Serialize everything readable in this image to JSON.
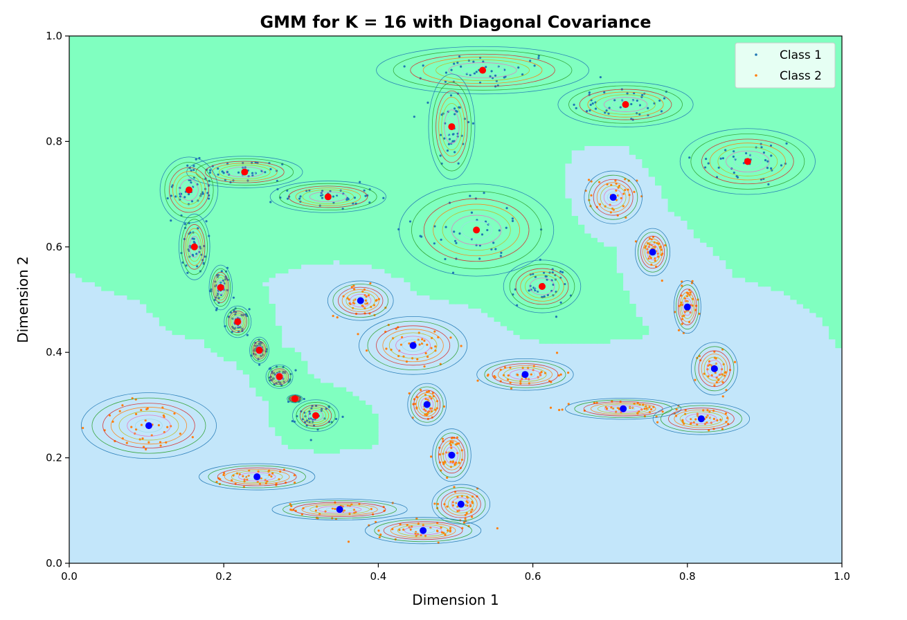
{
  "chart_data": {
    "type": "scatter",
    "title": "GMM for K = 16 with Diagonal Covariance",
    "xlabel": "Dimension 1",
    "ylabel": "Dimension 2",
    "xlim": [
      0.0,
      1.0
    ],
    "ylim": [
      0.0,
      1.0
    ],
    "x_ticks": [
      "0.0",
      "0.2",
      "0.4",
      "0.6",
      "0.8",
      "1.0"
    ],
    "y_ticks": [
      "0.0",
      "0.2",
      "0.4",
      "0.6",
      "0.8",
      "1.0"
    ],
    "grid": false,
    "legend_position": "top-right",
    "colors": {
      "class1_points": "#1f77b4",
      "class2_points": "#ff7f0e",
      "class1_centers": "#ff0000",
      "class2_centers": "#0000ff",
      "class1_region": "#80ffc0",
      "class2_region": "#c3e6fa"
    },
    "series": [
      {
        "name": "Class 1",
        "components": [
          {
            "mean": [
              0.535,
              0.935
            ],
            "sd": [
              0.055,
              0.018
            ]
          },
          {
            "mean": [
              0.72,
              0.87
            ],
            "sd": [
              0.035,
              0.017
            ]
          },
          {
            "mean": [
              0.495,
              0.828
            ],
            "sd": [
              0.012,
              0.04
            ]
          },
          {
            "mean": [
              0.878,
              0.762
            ],
            "sd": [
              0.035,
              0.025
            ]
          },
          {
            "mean": [
              0.227,
              0.742
            ],
            "sd": [
              0.03,
              0.012
            ]
          },
          {
            "mean": [
              0.155,
              0.708
            ],
            "sd": [
              0.015,
              0.025
            ]
          },
          {
            "mean": [
              0.335,
              0.695
            ],
            "sd": [
              0.03,
              0.012
            ]
          },
          {
            "mean": [
              0.527,
              0.632
            ],
            "sd": [
              0.04,
              0.035
            ]
          },
          {
            "mean": [
              0.162,
              0.6
            ],
            "sd": [
              0.008,
              0.025
            ]
          },
          {
            "mean": [
              0.612,
              0.525
            ],
            "sd": [
              0.02,
              0.02
            ]
          },
          {
            "mean": [
              0.196,
              0.523
            ],
            "sd": [
              0.006,
              0.017
            ]
          },
          {
            "mean": [
              0.218,
              0.458
            ],
            "sd": [
              0.007,
              0.012
            ]
          },
          {
            "mean": [
              0.246,
              0.404
            ],
            "sd": [
              0.005,
              0.01
            ]
          },
          {
            "mean": [
              0.272,
              0.354
            ],
            "sd": [
              0.007,
              0.009
            ]
          },
          {
            "mean": [
              0.292,
              0.312
            ],
            "sd": [
              0.004,
              0.003
            ]
          },
          {
            "mean": [
              0.319,
              0.28
            ],
            "sd": [
              0.012,
              0.012
            ]
          }
        ]
      },
      {
        "name": "Class 2",
        "components": [
          {
            "mean": [
              0.704,
              0.694
            ],
            "sd": [
              0.015,
              0.02
            ]
          },
          {
            "mean": [
              0.755,
              0.59
            ],
            "sd": [
              0.009,
              0.018
            ]
          },
          {
            "mean": [
              0.377,
              0.498
            ],
            "sd": [
              0.017,
              0.015
            ]
          },
          {
            "mean": [
              0.8,
              0.486
            ],
            "sd": [
              0.007,
              0.02
            ]
          },
          {
            "mean": [
              0.445,
              0.413
            ],
            "sd": [
              0.028,
              0.022
            ]
          },
          {
            "mean": [
              0.835,
              0.369
            ],
            "sd": [
              0.012,
              0.02
            ]
          },
          {
            "mean": [
              0.59,
              0.358
            ],
            "sd": [
              0.025,
              0.012
            ]
          },
          {
            "mean": [
              0.463,
              0.301
            ],
            "sd": [
              0.01,
              0.016
            ]
          },
          {
            "mean": [
              0.717,
              0.293
            ],
            "sd": [
              0.03,
              0.008
            ]
          },
          {
            "mean": [
              0.818,
              0.274
            ],
            "sd": [
              0.025,
              0.012
            ]
          },
          {
            "mean": [
              0.103,
              0.261
            ],
            "sd": [
              0.035,
              0.025
            ]
          },
          {
            "mean": [
              0.495,
              0.205
            ],
            "sd": [
              0.01,
              0.02
            ]
          },
          {
            "mean": [
              0.243,
              0.164
            ],
            "sd": [
              0.03,
              0.01
            ]
          },
          {
            "mean": [
              0.507,
              0.112
            ],
            "sd": [
              0.015,
              0.015
            ]
          },
          {
            "mean": [
              0.35,
              0.102
            ],
            "sd": [
              0.035,
              0.008
            ]
          },
          {
            "mean": [
              0.458,
              0.062
            ],
            "sd": [
              0.03,
              0.01
            ]
          }
        ]
      }
    ],
    "legend": [
      "Class 1",
      "Class 2"
    ]
  }
}
